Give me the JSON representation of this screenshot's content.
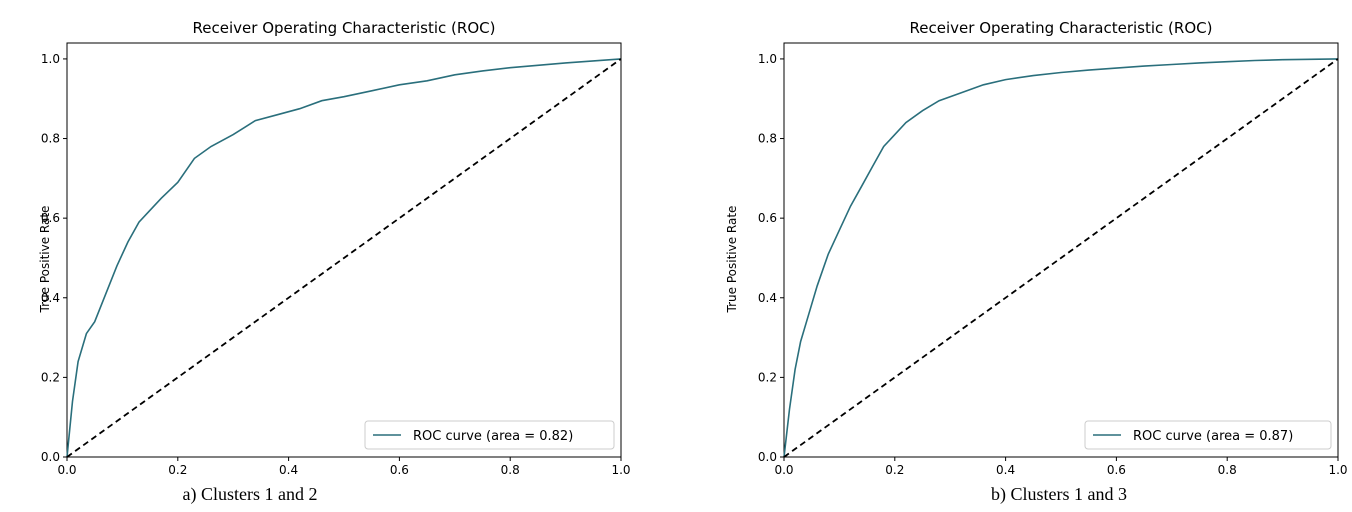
{
  "figure": {
    "panels": [
      {
        "caption": "a) Clusters 1 and 2",
        "chart_data": {
          "type": "line",
          "title": "Receiver Operating Characteristic (ROC)",
          "xlabel": "",
          "ylabel": "True Positive Rate",
          "xlim": [
            0,
            1
          ],
          "ylim": [
            0,
            1.04
          ],
          "xticks": [
            "0.0",
            "0.2",
            "0.4",
            "0.6",
            "0.8",
            "1.0"
          ],
          "yticks": [
            "0.0",
            "0.2",
            "0.4",
            "0.6",
            "0.8",
            "1.0"
          ],
          "legend": "lower-right",
          "grid": false,
          "series": [
            {
              "name": "ROC curve (area = 0.82)",
              "color": "#2a6f7c",
              "x": [
                0,
                0.01,
                0.02,
                0.035,
                0.05,
                0.07,
                0.09,
                0.11,
                0.13,
                0.15,
                0.17,
                0.2,
                0.23,
                0.26,
                0.3,
                0.34,
                0.38,
                0.42,
                0.46,
                0.5,
                0.55,
                0.6,
                0.65,
                0.7,
                0.75,
                0.8,
                0.85,
                0.9,
                0.95,
                1.0
              ],
              "y": [
                0,
                0.14,
                0.24,
                0.31,
                0.34,
                0.41,
                0.48,
                0.54,
                0.59,
                0.62,
                0.65,
                0.69,
                0.75,
                0.78,
                0.81,
                0.845,
                0.86,
                0.875,
                0.895,
                0.905,
                0.92,
                0.935,
                0.945,
                0.96,
                0.97,
                0.978,
                0.984,
                0.99,
                0.995,
                1.0
              ]
            },
            {
              "name": "",
              "color": "#000000",
              "dashed": true,
              "x": [
                0,
                1
              ],
              "y": [
                0,
                1
              ]
            }
          ]
        }
      },
      {
        "caption": "b) Clusters 1 and 3",
        "chart_data": {
          "type": "line",
          "title": "Receiver Operating Characteristic (ROC)",
          "xlabel": "",
          "ylabel": "True Positive Rate",
          "xlim": [
            0,
            1
          ],
          "ylim": [
            0,
            1.04
          ],
          "xticks": [
            "0.0",
            "0.2",
            "0.4",
            "0.6",
            "0.8",
            "1.0"
          ],
          "yticks": [
            "0.0",
            "0.2",
            "0.4",
            "0.6",
            "0.8",
            "1.0"
          ],
          "legend": "lower-right",
          "grid": false,
          "series": [
            {
              "name": "ROC curve (area = 0.87)",
              "color": "#2a6f7c",
              "x": [
                0,
                0.01,
                0.02,
                0.03,
                0.045,
                0.06,
                0.08,
                0.1,
                0.12,
                0.14,
                0.16,
                0.18,
                0.2,
                0.22,
                0.25,
                0.28,
                0.32,
                0.36,
                0.4,
                0.45,
                0.5,
                0.55,
                0.6,
                0.65,
                0.7,
                0.75,
                0.8,
                0.85,
                0.9,
                0.95,
                1.0
              ],
              "y": [
                0,
                0.12,
                0.22,
                0.29,
                0.36,
                0.43,
                0.51,
                0.57,
                0.63,
                0.68,
                0.73,
                0.78,
                0.81,
                0.84,
                0.87,
                0.895,
                0.915,
                0.935,
                0.948,
                0.958,
                0.966,
                0.972,
                0.977,
                0.982,
                0.986,
                0.99,
                0.993,
                0.996,
                0.998,
                0.999,
                1.0
              ]
            },
            {
              "name": "",
              "color": "#000000",
              "dashed": true,
              "x": [
                0,
                1
              ],
              "y": [
                0,
                1
              ]
            }
          ]
        }
      }
    ]
  }
}
